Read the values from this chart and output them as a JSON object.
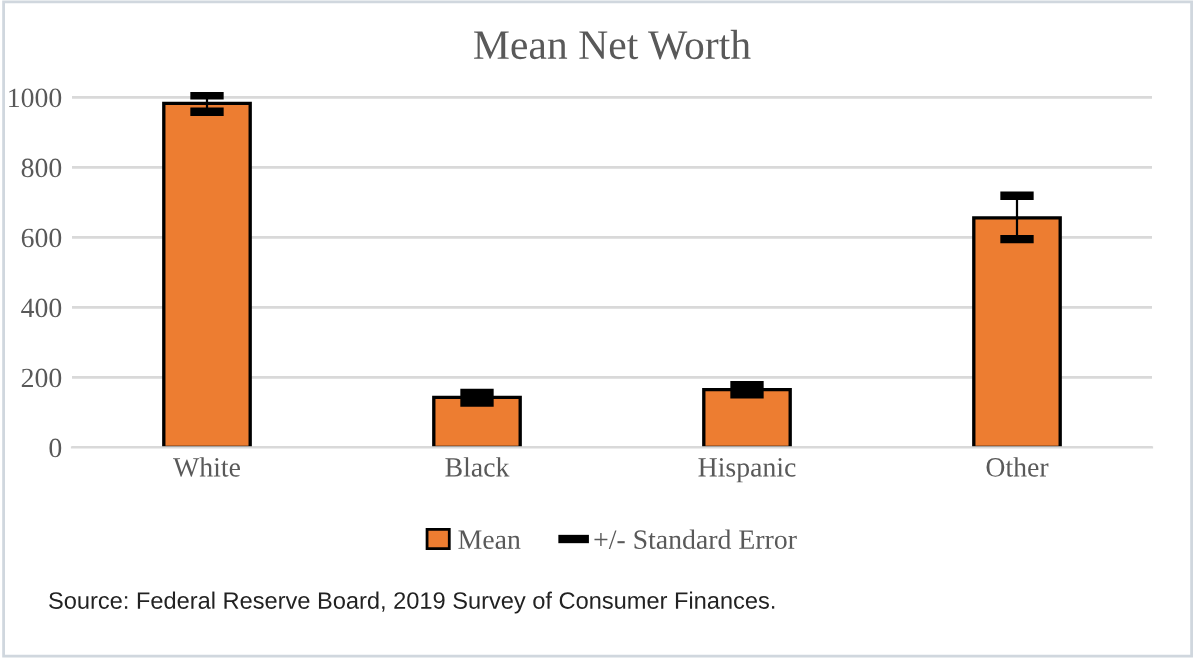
{
  "chart_data": {
    "type": "bar",
    "title": "Mean Net Worth",
    "categories": [
      "White",
      "Black",
      "Hispanic",
      "Other"
    ],
    "series": [
      {
        "name": "Mean",
        "color": "#ed7d31",
        "values": [
          983,
          143,
          165,
          656
        ],
        "errors": [
          [
            959,
            1006
          ],
          [
            128,
            156
          ],
          [
            152,
            178
          ],
          [
            595,
            719
          ]
        ]
      },
      {
        "name": "+/- Standard Error",
        "type": "scatter",
        "color": "#000000",
        "values": [
          null,
          null,
          null,
          null
        ]
      }
    ],
    "ylim": [
      0,
      1015
    ],
    "yticks": [
      0,
      200,
      400,
      600,
      800,
      1000
    ],
    "grid": "y",
    "legend": "bottom",
    "annotations": [
      "Source: Federal Reserve Board, 2019 Survey of Consumer Finances."
    ]
  }
}
